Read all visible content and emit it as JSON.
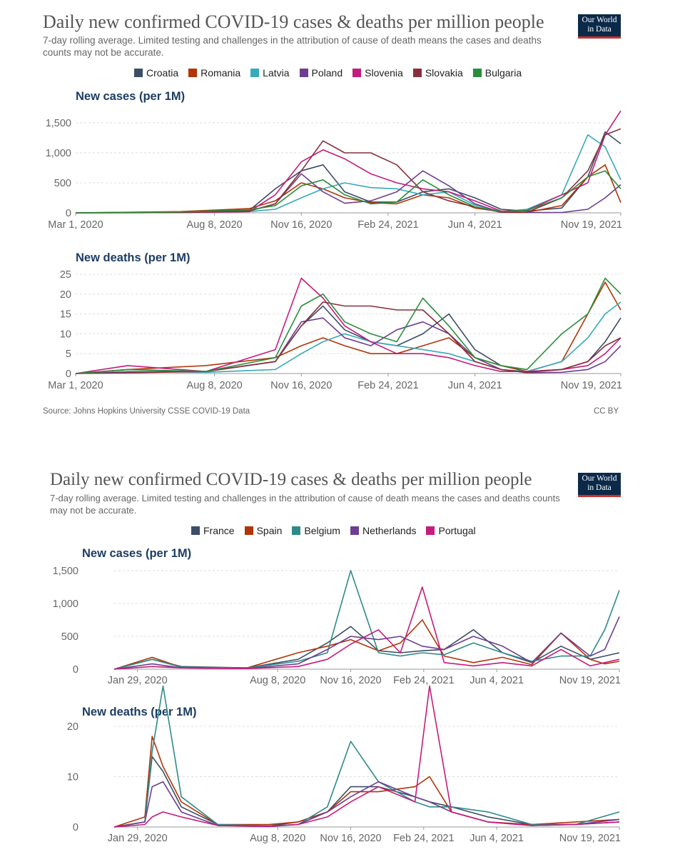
{
  "panels": [
    {
      "title": "Daily new confirmed COVID-19 cases & deaths per million people",
      "subtitle": "7-day rolling average. Limited testing and challenges in the attribution of cause of death means the cases and deaths counts may not be accurate.",
      "logo": "Our World in Data",
      "source": "Source: Johns Hopkins University CSSE COVID-19 Data",
      "license": "CC BY",
      "legend": [
        {
          "name": "Croatia",
          "color": "#3c4e66"
        },
        {
          "name": "Romania",
          "color": "#b13507"
        },
        {
          "name": "Latvia",
          "color": "#38aaba"
        },
        {
          "name": "Poland",
          "color": "#6d3e91"
        },
        {
          "name": "Slovenia",
          "color": "#c51b7d"
        },
        {
          "name": "Slovakia",
          "color": "#883039"
        },
        {
          "name": "Bulgaria",
          "color": "#2a8d3a"
        }
      ]
    },
    {
      "title": "Daily new confirmed COVID-19 cases & deaths per million people",
      "subtitle": "7-day rolling average. Limited testing and challenges in the attribution of cause of death means the cases and deaths counts may not be accurate.",
      "logo": "Our World in Data",
      "legend": [
        {
          "name": "France",
          "color": "#3c4e66"
        },
        {
          "name": "Spain",
          "color": "#b13507"
        },
        {
          "name": "Belgium",
          "color": "#2f8a8a"
        },
        {
          "name": "Netherlands",
          "color": "#6d3e91"
        },
        {
          "name": "Portugal",
          "color": "#c51b7d"
        }
      ]
    }
  ],
  "chart_data": [
    {
      "id": "c1",
      "type": "line",
      "title": "New cases (per 1M)",
      "x_tick_labels": [
        "Mar 1, 2020",
        "Aug 8, 2020",
        "Nov 16, 2020",
        "Feb 24, 2021",
        "Jun 4, 2021",
        "Nov 19, 2021"
      ],
      "x_tick_positions": [
        0,
        160,
        260,
        360,
        460,
        628
      ],
      "x_range": [
        0,
        628
      ],
      "y_ticks": [
        0,
        500,
        1000,
        1500
      ],
      "y_tick_labels": [
        "0",
        "500",
        "1,000",
        "1,500"
      ],
      "ylim": [
        0,
        1700
      ],
      "x": [
        0,
        120,
        200,
        230,
        260,
        285,
        310,
        340,
        370,
        400,
        430,
        460,
        490,
        520,
        560,
        590,
        610,
        628
      ],
      "series": [
        {
          "name": "Croatia",
          "color": "#3c4e66",
          "values": [
            0,
            10,
            40,
            400,
            700,
            800,
            350,
            180,
            180,
            350,
            400,
            250,
            60,
            30,
            80,
            600,
            1350,
            1150
          ]
        },
        {
          "name": "Romania",
          "color": "#b13507",
          "values": [
            0,
            20,
            70,
            200,
            500,
            400,
            250,
            170,
            150,
            300,
            250,
            80,
            20,
            10,
            120,
            600,
            800,
            170
          ]
        },
        {
          "name": "Latvia",
          "color": "#38aaba",
          "values": [
            0,
            5,
            20,
            60,
            250,
            400,
            500,
            420,
            400,
            300,
            350,
            130,
            20,
            60,
            300,
            1300,
            1100,
            550
          ]
        },
        {
          "name": "Poland",
          "color": "#6d3e91",
          "values": [
            0,
            10,
            30,
            150,
            650,
            350,
            160,
            200,
            350,
            700,
            450,
            150,
            10,
            5,
            5,
            60,
            250,
            470
          ]
        },
        {
          "name": "Slovenia",
          "color": "#c51b7d",
          "values": [
            0,
            5,
            20,
            300,
            850,
            1050,
            900,
            650,
            500,
            400,
            350,
            200,
            30,
            40,
            300,
            500,
            1300,
            1700
          ]
        },
        {
          "name": "Slovakia",
          "color": "#883039",
          "values": [
            0,
            5,
            30,
            150,
            700,
            1200,
            1000,
            1000,
            800,
            350,
            200,
            100,
            10,
            10,
            250,
            700,
            1300,
            1400
          ]
        },
        {
          "name": "Bulgaria",
          "color": "#2a8d3a",
          "values": [
            0,
            15,
            50,
            120,
            450,
            550,
            300,
            150,
            180,
            550,
            300,
            100,
            20,
            40,
            250,
            600,
            700,
            400
          ]
        }
      ]
    },
    {
      "id": "c2",
      "type": "line",
      "title": "New deaths (per 1M)",
      "x_tick_labels": [
        "Mar 1, 2020",
        "Aug 8, 2020",
        "Nov 16, 2020",
        "Feb 24, 2021",
        "Jun 4, 2021",
        "Nov 19, 2021"
      ],
      "x_tick_positions": [
        0,
        160,
        260,
        360,
        460,
        628
      ],
      "x_range": [
        0,
        628
      ],
      "y_ticks": [
        0,
        5,
        10,
        15,
        20,
        25
      ],
      "y_tick_labels": [
        "0",
        "5",
        "10",
        "15",
        "20",
        "25"
      ],
      "ylim": [
        0,
        26
      ],
      "x": [
        0,
        60,
        150,
        230,
        260,
        285,
        310,
        340,
        370,
        400,
        430,
        460,
        490,
        520,
        560,
        590,
        610,
        628
      ],
      "series": [
        {
          "name": "Croatia",
          "color": "#3c4e66",
          "values": [
            0,
            0.5,
            0.5,
            3,
            12,
            17,
            11,
            8,
            7,
            10,
            15,
            6,
            2,
            0.5,
            1,
            3,
            8,
            14
          ]
        },
        {
          "name": "Romania",
          "color": "#b13507",
          "values": [
            0,
            1,
            2,
            4,
            7,
            9,
            7,
            5,
            5,
            7,
            9,
            4,
            2,
            0.5,
            3,
            15,
            23,
            16
          ]
        },
        {
          "name": "Latvia",
          "color": "#38aaba",
          "values": [
            0,
            0.5,
            0.3,
            1,
            5,
            8,
            10,
            8,
            7,
            6,
            5,
            3,
            1,
            0.5,
            3,
            9,
            15,
            18
          ]
        },
        {
          "name": "Poland",
          "color": "#6d3e91",
          "values": [
            0,
            0.3,
            0.5,
            3,
            13,
            14,
            9,
            7,
            11,
            13,
            10,
            4,
            1,
            0.2,
            0.3,
            1,
            3,
            7
          ]
        },
        {
          "name": "Slovenia",
          "color": "#c51b7d",
          "values": [
            0,
            2,
            0.5,
            6,
            24,
            19,
            12,
            8,
            5,
            5,
            4,
            2,
            0.5,
            0.5,
            1,
            2,
            5,
            9
          ]
        },
        {
          "name": "Slovakia",
          "color": "#883039",
          "values": [
            0,
            0.2,
            0.5,
            3,
            12,
            18,
            17,
            17,
            16,
            16,
            10,
            3,
            1,
            0.3,
            1,
            3,
            7,
            9
          ]
        },
        {
          "name": "Bulgaria",
          "color": "#2a8d3a",
          "values": [
            0,
            1,
            0.5,
            4,
            17,
            20,
            13,
            10,
            8,
            19,
            12,
            4,
            2,
            1,
            10,
            15,
            24,
            20
          ]
        }
      ]
    },
    {
      "id": "c3",
      "type": "line",
      "title": "New cases (per 1M)",
      "x_tick_labels": [
        "Jan 29, 2020",
        "Aug 8, 2020",
        "Nov 16, 2020",
        "Feb 24, 2021",
        "Jun 4, 2021",
        "Nov 19, 2021"
      ],
      "x_tick_positions": [
        0,
        192,
        292,
        392,
        492,
        660
      ],
      "x_range": [
        -32,
        660
      ],
      "y_ticks": [
        0,
        500,
        1000,
        1500
      ],
      "y_tick_labels": [
        "0",
        "500",
        "1,000",
        "1,500"
      ],
      "ylim": [
        0,
        1600
      ],
      "x": [
        -32,
        20,
        60,
        150,
        220,
        260,
        292,
        330,
        360,
        390,
        420,
        460,
        500,
        540,
        580,
        620,
        640,
        660
      ],
      "series": [
        {
          "name": "France",
          "color": "#3c4e66",
          "values": [
            0,
            150,
            40,
            20,
            150,
            400,
            650,
            280,
            250,
            280,
            300,
            600,
            250,
            100,
            350,
            150,
            200,
            250
          ]
        },
        {
          "name": "Spain",
          "color": "#b13507",
          "values": [
            0,
            180,
            30,
            20,
            250,
            350,
            450,
            280,
            400,
            750,
            200,
            100,
            180,
            70,
            550,
            150,
            80,
            120
          ]
        },
        {
          "name": "Belgium",
          "color": "#2f8a8a",
          "values": [
            0,
            150,
            30,
            20,
            120,
            250,
            1500,
            250,
            200,
            250,
            220,
            400,
            250,
            120,
            200,
            200,
            600,
            1200
          ]
        },
        {
          "name": "Netherlands",
          "color": "#6d3e91",
          "values": [
            0,
            80,
            20,
            10,
            80,
            300,
            500,
            450,
            500,
            350,
            300,
            500,
            350,
            100,
            550,
            200,
            300,
            800
          ]
        },
        {
          "name": "Portugal",
          "color": "#c51b7d",
          "values": [
            0,
            40,
            20,
            10,
            40,
            150,
            380,
            600,
            250,
            1250,
            100,
            50,
            100,
            50,
            300,
            50,
            100,
            150
          ]
        }
      ]
    },
    {
      "id": "c4",
      "type": "line",
      "title": "New deaths (per 1M)",
      "x_tick_labels": [
        "Jan 29, 2020",
        "Aug 8, 2020",
        "Nov 16, 2020",
        "Feb 24, 2021",
        "Jun 4, 2021",
        "Nov 19, 2021"
      ],
      "x_tick_positions": [
        0,
        192,
        292,
        392,
        492,
        660
      ],
      "x_range": [
        -32,
        660
      ],
      "y_ticks": [
        0,
        10,
        20
      ],
      "y_tick_labels": [
        "0",
        "10",
        "20"
      ],
      "ylim": [
        0,
        30
      ],
      "x": [
        -32,
        10,
        20,
        35,
        60,
        110,
        180,
        220,
        260,
        292,
        330,
        380,
        400,
        430,
        480,
        540,
        600,
        660
      ],
      "series": [
        {
          "name": "France",
          "color": "#3c4e66",
          "values": [
            0,
            1,
            14,
            11,
            4,
            0.5,
            0.2,
            1,
            3,
            8,
            8,
            6,
            5,
            4,
            2,
            0.5,
            0.5,
            1
          ]
        },
        {
          "name": "Spain",
          "color": "#b13507",
          "values": [
            0,
            2,
            18,
            12,
            5,
            0.5,
            0.5,
            1,
            3,
            7,
            7,
            8,
            10,
            3,
            1,
            0.5,
            1,
            1.5
          ]
        },
        {
          "name": "Belgium",
          "color": "#2f8a8a",
          "values": [
            0,
            1,
            15,
            28,
            6,
            0.5,
            0.2,
            0.5,
            4,
            17,
            9,
            5,
            4,
            4,
            3,
            0.5,
            0.5,
            3
          ]
        },
        {
          "name": "Netherlands",
          "color": "#6d3e91",
          "values": [
            0,
            1,
            8,
            9,
            3,
            0.3,
            0.1,
            0.5,
            3,
            6,
            9,
            6,
            5,
            3,
            1,
            0.3,
            0.5,
            1.5
          ]
        },
        {
          "name": "Portugal",
          "color": "#c51b7d",
          "values": [
            0,
            0.5,
            2,
            3,
            2,
            0.3,
            0.2,
            0.5,
            2,
            5,
            8,
            5,
            28,
            3,
            1,
            0.3,
            0.5,
            1
          ]
        }
      ]
    }
  ]
}
